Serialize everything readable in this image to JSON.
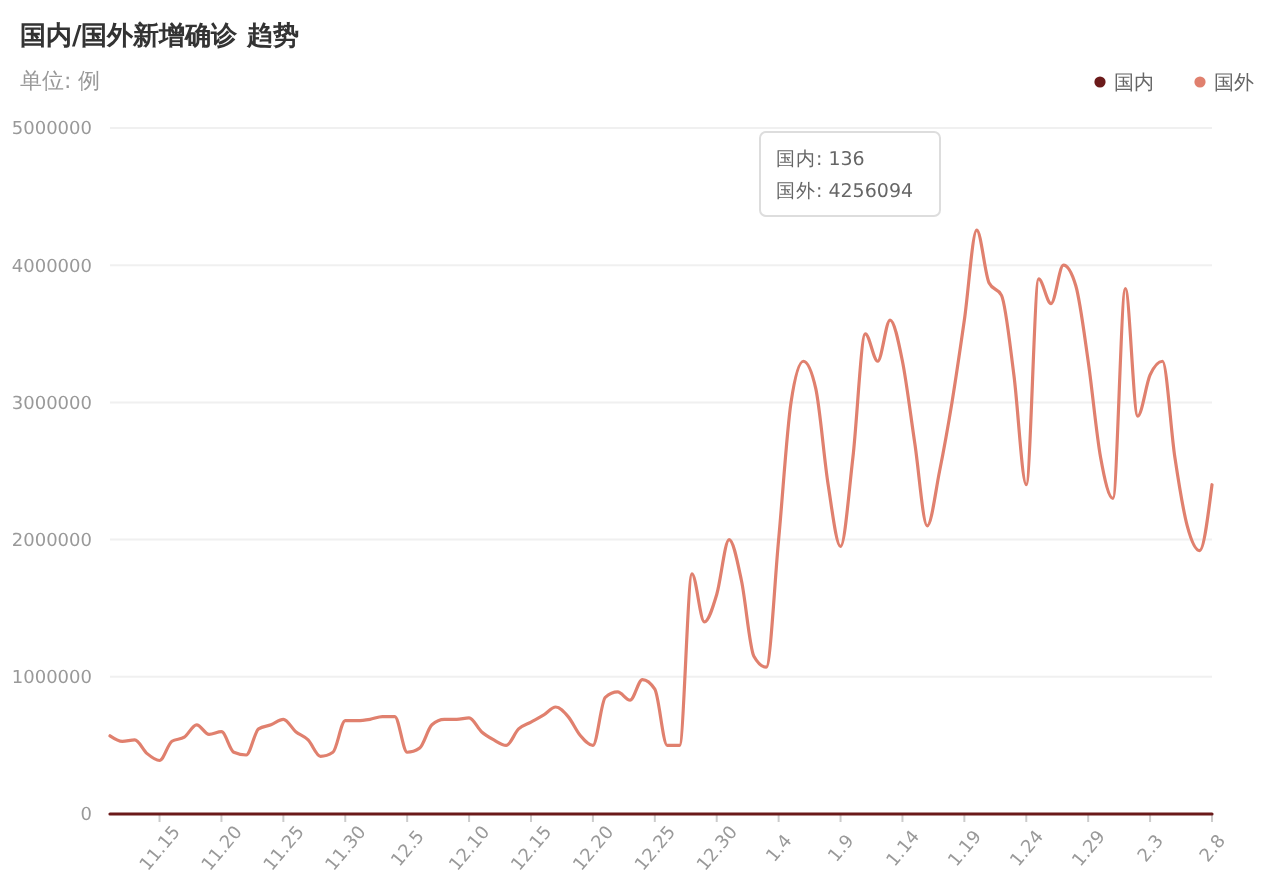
{
  "chart_data": {
    "type": "line",
    "title": "国内/国外新增确诊 趋势",
    "subtitle": "单位: 例",
    "categories": [
      null,
      null,
      null,
      null,
      "11.15",
      null,
      null,
      null,
      null,
      "11.20",
      null,
      null,
      null,
      null,
      "11.25",
      null,
      null,
      null,
      null,
      "11.30",
      null,
      null,
      null,
      null,
      "12.5",
      null,
      null,
      null,
      null,
      "12.10",
      null,
      null,
      null,
      null,
      "12.15",
      null,
      null,
      null,
      null,
      "12.20",
      null,
      null,
      null,
      null,
      "12.25",
      null,
      null,
      null,
      null,
      "12.30",
      null,
      null,
      null,
      null,
      "1.4",
      null,
      null,
      null,
      null,
      "1.9",
      null,
      null,
      null,
      null,
      "1.14",
      null,
      null,
      null,
      null,
      "1.19",
      null,
      null,
      null,
      null,
      "1.24",
      null,
      null,
      null,
      null,
      "1.29",
      null,
      null,
      null,
      null,
      "2.3",
      null,
      null,
      null,
      null,
      "2.8"
    ],
    "series": [
      {
        "name": "国内",
        "color": "#6b1a1a",
        "values": [
          0,
          0,
          0,
          0,
          0,
          0,
          0,
          0,
          0,
          0,
          0,
          0,
          0,
          0,
          0,
          0,
          0,
          0,
          0,
          0,
          0,
          0,
          0,
          0,
          0,
          0,
          0,
          0,
          0,
          0,
          0,
          0,
          0,
          0,
          0,
          0,
          0,
          0,
          0,
          0,
          0,
          0,
          0,
          0,
          0,
          0,
          0,
          0,
          0,
          0,
          0,
          0,
          0,
          0,
          0,
          0,
          0,
          0,
          0,
          0,
          0,
          0,
          0,
          0,
          0,
          0,
          0,
          0,
          0,
          0,
          136,
          0,
          0,
          0,
          0,
          0,
          0,
          0,
          0,
          0,
          0,
          0,
          0,
          0,
          0,
          0,
          0,
          0,
          0,
          0
        ]
      },
      {
        "name": "国外",
        "color": "#e0806e",
        "values": [
          570000,
          530000,
          540000,
          440000,
          390000,
          530000,
          560000,
          650000,
          580000,
          600000,
          450000,
          430000,
          620000,
          650000,
          690000,
          600000,
          540000,
          420000,
          450000,
          680000,
          680000,
          690000,
          710000,
          710000,
          450000,
          480000,
          650000,
          690000,
          690000,
          700000,
          600000,
          540000,
          500000,
          620000,
          670000,
          720000,
          780000,
          710000,
          570000,
          500000,
          850000,
          890000,
          830000,
          980000,
          910000,
          500000,
          500000,
          1750000,
          1400000,
          1600000,
          2000000,
          1700000,
          1150000,
          1070000,
          2000000,
          3000000,
          3300000,
          3100000,
          2400000,
          1950000,
          2600000,
          3500000,
          3300000,
          3600000,
          3300000,
          2700000,
          2100000,
          2500000,
          3000000,
          3600000,
          4256094,
          3870000,
          3780000,
          3200000,
          2400000,
          3900000,
          3720000,
          4000000,
          3850000,
          3300000,
          2600000,
          2300000,
          3830000,
          2900000,
          3200000,
          3300000,
          2600000,
          2100000,
          1920000,
          2400000
        ]
      }
    ],
    "ylim": [
      0,
      5000000
    ],
    "yticks": [
      0,
      1000000,
      2000000,
      3000000,
      4000000,
      5000000
    ],
    "grid": "y",
    "legend": "top right",
    "annotations": [
      "国内: 136",
      "国外: 4256094"
    ]
  }
}
